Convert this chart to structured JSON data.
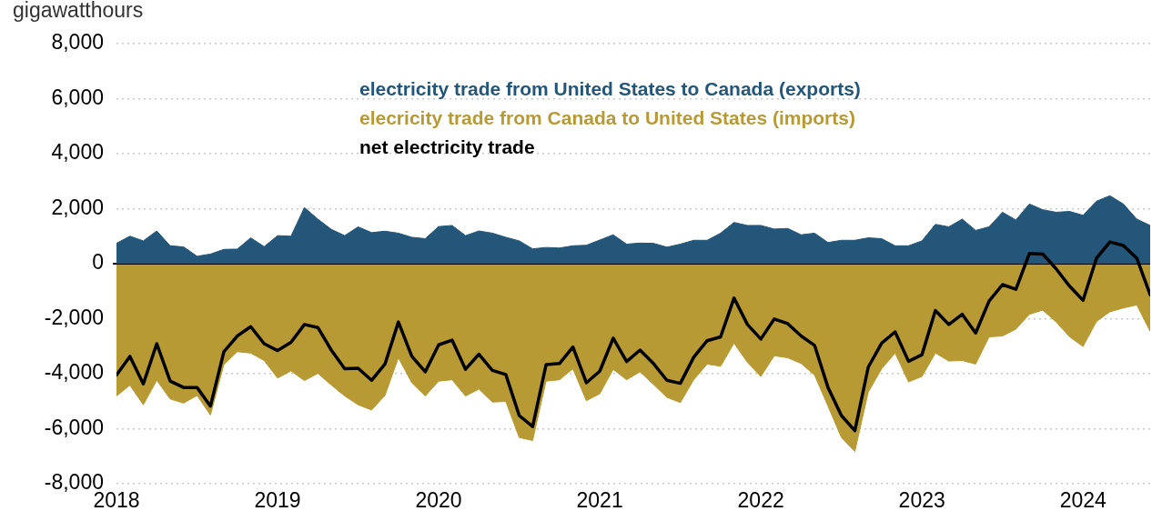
{
  "chart_data": {
    "type": "area",
    "ylabel": "gigawatthours",
    "x": [
      "2018-01",
      "2018-02",
      "2018-03",
      "2018-04",
      "2018-05",
      "2018-06",
      "2018-07",
      "2018-08",
      "2018-09",
      "2018-10",
      "2018-11",
      "2018-12",
      "2019-01",
      "2019-02",
      "2019-03",
      "2019-04",
      "2019-05",
      "2019-06",
      "2019-07",
      "2019-08",
      "2019-09",
      "2019-10",
      "2019-11",
      "2019-12",
      "2020-01",
      "2020-02",
      "2020-03",
      "2020-04",
      "2020-05",
      "2020-06",
      "2020-07",
      "2020-08",
      "2020-09",
      "2020-10",
      "2020-11",
      "2020-12",
      "2021-01",
      "2021-02",
      "2021-03",
      "2021-04",
      "2021-05",
      "2021-06",
      "2021-07",
      "2021-08",
      "2021-09",
      "2021-10",
      "2021-11",
      "2021-12",
      "2022-01",
      "2022-02",
      "2022-03",
      "2022-04",
      "2022-05",
      "2022-06",
      "2022-07",
      "2022-08",
      "2022-09",
      "2022-10",
      "2022-11",
      "2022-12",
      "2023-01",
      "2023-02",
      "2023-03",
      "2023-04",
      "2023-05",
      "2023-06",
      "2023-07",
      "2023-08",
      "2023-09",
      "2023-10",
      "2023-11",
      "2023-12",
      "2024-01",
      "2024-02",
      "2024-03",
      "2024-04",
      "2024-05",
      "2024-06"
    ],
    "series": [
      {
        "name": "electricity trade from United States to Canada (exports)",
        "color": "#235678",
        "values": [
          740,
          1000,
          830,
          1190,
          650,
          610,
          270,
          350,
          520,
          530,
          940,
          620,
          1020,
          1000,
          2040,
          1620,
          1250,
          1020,
          1340,
          1130,
          1180,
          1110,
          960,
          910,
          1350,
          1390,
          1020,
          1190,
          1110,
          960,
          830,
          540,
          590,
          570,
          650,
          670,
          860,
          1050,
          710,
          750,
          740,
          600,
          710,
          850,
          850,
          1110,
          1500,
          1390,
          1390,
          1260,
          1280,
          1050,
          1110,
          770,
          850,
          850,
          940,
          910,
          650,
          650,
          830,
          1430,
          1340,
          1620,
          1210,
          1340,
          1870,
          1590,
          2170,
          1960,
          1870,
          1900,
          1760,
          2270,
          2470,
          2170,
          1620,
          1390
        ]
      },
      {
        "name": "elecricity trade from Canada to United States (imports)",
        "color": "#b89a35",
        "values": [
          -4810,
          -4420,
          -5130,
          -4240,
          -4920,
          -5070,
          -4790,
          -5500,
          -3670,
          -3200,
          -3250,
          -3520,
          -4160,
          -3900,
          -4250,
          -3990,
          -4410,
          -4810,
          -5130,
          -5320,
          -4790,
          -3420,
          -4330,
          -4810,
          -4270,
          -4220,
          -4810,
          -4560,
          -5030,
          -5010,
          -6320,
          -6430,
          -4270,
          -4220,
          -3820,
          -4980,
          -4730,
          -3840,
          -4220,
          -3930,
          -4390,
          -4860,
          -5050,
          -4220,
          -3650,
          -3730,
          -2890,
          -3590,
          -4100,
          -3350,
          -3420,
          -3630,
          -4050,
          -5180,
          -6320,
          -6830,
          -4670,
          -3820,
          -3250,
          -4300,
          -4100,
          -3250,
          -3540,
          -3520,
          -3650,
          -2660,
          -2630,
          -2380,
          -1840,
          -1690,
          -2120,
          -2660,
          -3010,
          -2100,
          -1750,
          -1610,
          -1500,
          -2460
        ]
      },
      {
        "name": "net electricity trade",
        "type": "line",
        "color": "#000000",
        "values": [
          -4050,
          -3370,
          -4370,
          -2910,
          -4270,
          -4500,
          -4500,
          -5180,
          -3200,
          -2630,
          -2290,
          -2910,
          -3160,
          -2860,
          -2210,
          -2320,
          -3140,
          -3820,
          -3800,
          -4240,
          -3650,
          -2120,
          -3370,
          -3930,
          -2950,
          -2780,
          -3840,
          -3290,
          -3880,
          -4030,
          -5520,
          -5920,
          -3670,
          -3630,
          -3030,
          -4330,
          -3910,
          -2710,
          -3560,
          -3140,
          -3630,
          -4240,
          -4350,
          -3400,
          -2800,
          -2660,
          -1250,
          -2210,
          -2740,
          -2010,
          -2180,
          -2630,
          -2970,
          -4500,
          -5520,
          -6070,
          -3760,
          -2890,
          -2480,
          -3550,
          -3310,
          -1700,
          -2210,
          -1840,
          -2520,
          -1360,
          -760,
          -930,
          370,
          350,
          -190,
          -820,
          -1330,
          200,
          790,
          660,
          200,
          -1130
        ]
      }
    ],
    "xlim": [
      "2018-01",
      "2024-06"
    ],
    "xticks": [
      "2018",
      "2019",
      "2020",
      "2021",
      "2022",
      "2023",
      "2024"
    ],
    "ylim": [
      -8000,
      8000
    ],
    "yticks": [
      {
        "value": -8000,
        "label": "-8,000"
      },
      {
        "value": -6000,
        "label": "-6,000"
      },
      {
        "value": -4000,
        "label": "-4,000"
      },
      {
        "value": -2000,
        "label": "-2,000"
      },
      0,
      {
        "value": 2000,
        "label": "2,000"
      },
      {
        "value": 4000,
        "label": "4,000"
      },
      {
        "value": 6000,
        "label": "6,000"
      },
      {
        "value": 8000,
        "label": "8,000"
      }
    ],
    "grid": "y",
    "legend": "top"
  }
}
